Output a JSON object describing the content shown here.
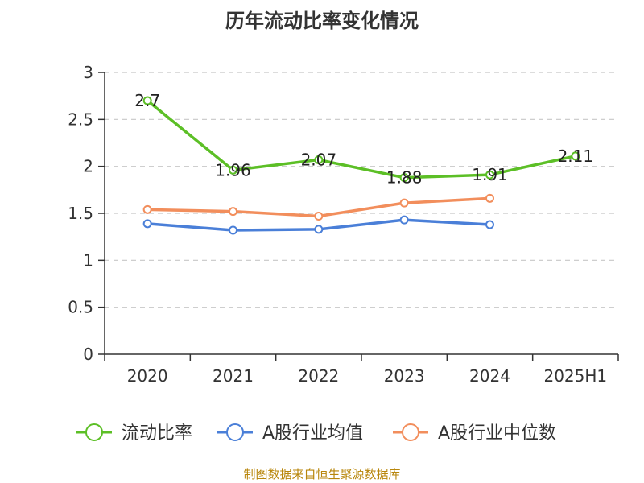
{
  "chart_data": {
    "type": "line",
    "title": "历年流动比率变化情况",
    "categories": [
      "2020",
      "2021",
      "2022",
      "2023",
      "2024",
      "2025H1"
    ],
    "yticks": [
      "0",
      "0.5",
      "1",
      "1.5",
      "2",
      "2.5",
      "3"
    ],
    "ylim": [
      0,
      3
    ],
    "grid": true,
    "legend_position": "bottom",
    "series": [
      {
        "name": "流动比率",
        "color": "#5cbf26",
        "values": [
          2.7,
          1.96,
          2.07,
          1.88,
          1.91,
          2.11
        ],
        "labels": [
          "2.7",
          "1.96",
          "2.07",
          "1.88",
          "1.91",
          "2.11"
        ]
      },
      {
        "name": "A股行业均值",
        "color": "#4a7fd8",
        "values": [
          1.39,
          1.32,
          1.33,
          1.43,
          1.38,
          null
        ]
      },
      {
        "name": "A股行业中位数",
        "color": "#f28e5c",
        "values": [
          1.54,
          1.52,
          1.47,
          1.61,
          1.66,
          null
        ]
      }
    ]
  },
  "source": "制图数据来自恒生聚源数据库"
}
